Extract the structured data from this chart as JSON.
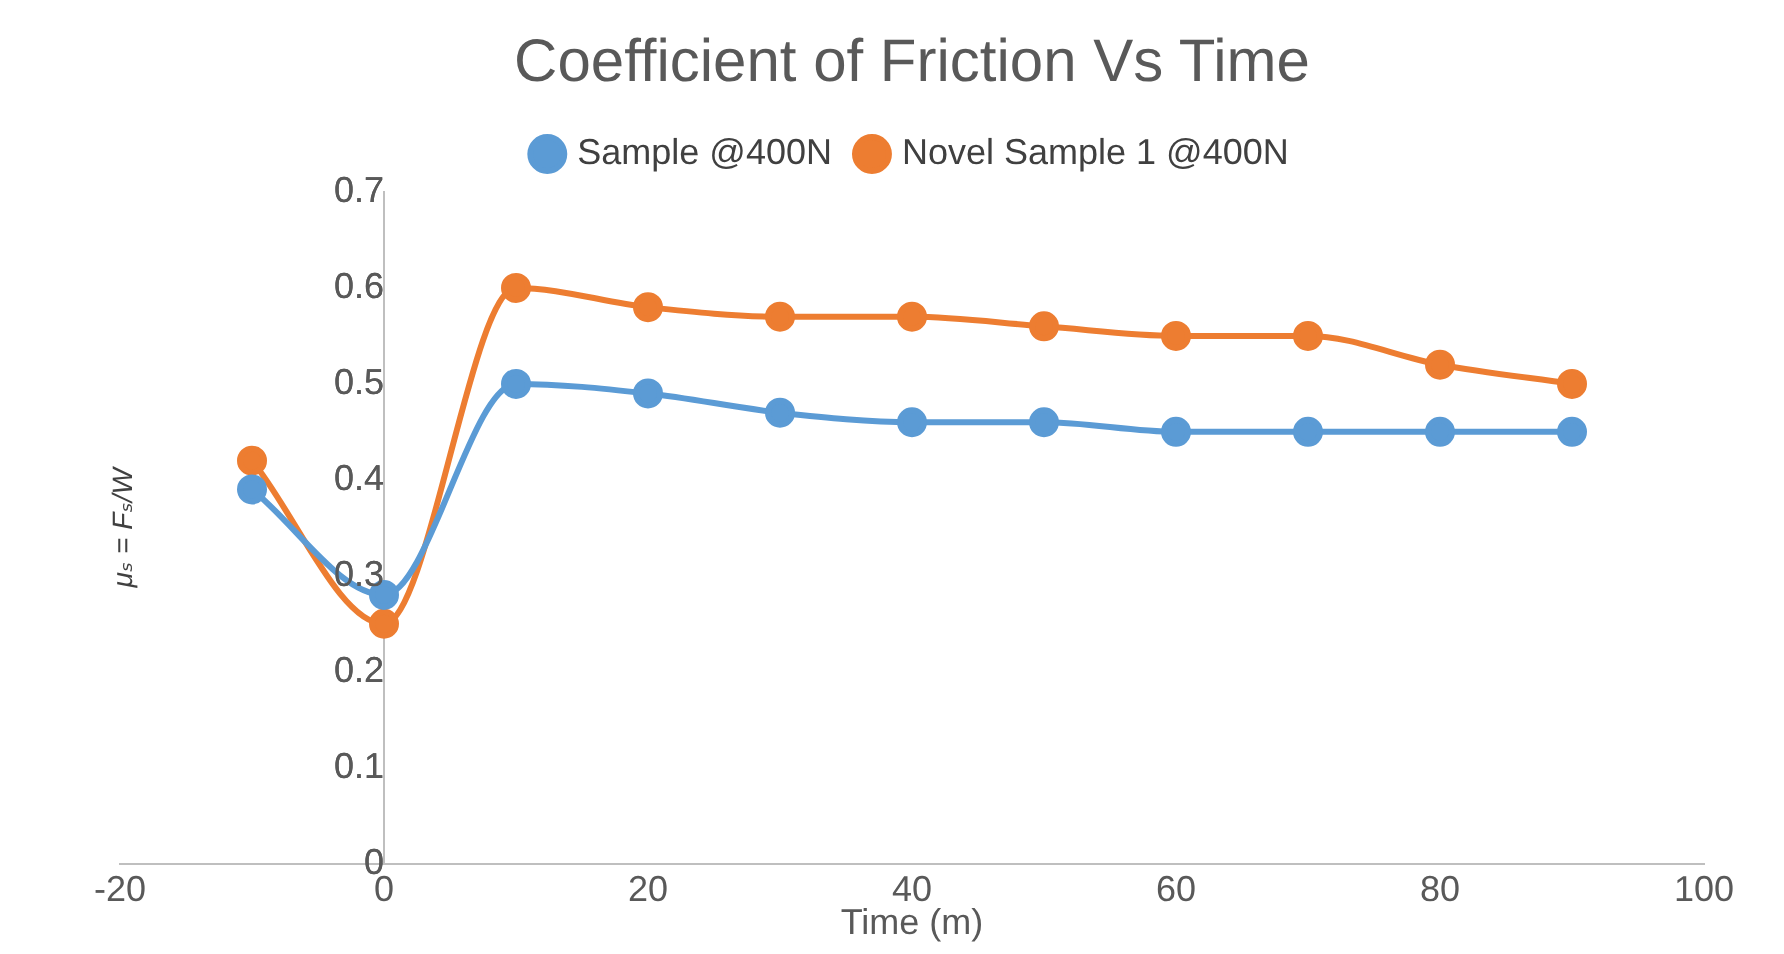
{
  "chart_data": {
    "type": "line",
    "title": "Coefficient of Friction Vs Time",
    "xlabel": "Time (m)",
    "ylabel": "μₛ = Fₛ/W",
    "x": [
      -10,
      0,
      10,
      20,
      30,
      40,
      50,
      60,
      70,
      80,
      90
    ],
    "series": [
      {
        "name": "Sample @400N",
        "color": "#5b9bd5",
        "values": [
          0.39,
          0.28,
          0.5,
          0.49,
          0.47,
          0.46,
          0.46,
          0.45,
          0.45,
          0.45,
          0.45
        ]
      },
      {
        "name": "Novel Sample 1 @400N",
        "color": "#ed7d31",
        "values": [
          0.42,
          0.25,
          0.6,
          0.58,
          0.57,
          0.57,
          0.56,
          0.55,
          0.55,
          0.52,
          0.5
        ]
      }
    ],
    "xlim": [
      -20,
      100
    ],
    "xticks": [
      -20,
      0,
      20,
      40,
      60,
      80,
      100
    ],
    "ylim": [
      0,
      0.7
    ],
    "yticks": [
      0,
      0.1,
      0.2,
      0.3,
      0.4,
      0.5,
      0.6,
      0.7
    ],
    "grid": false,
    "legend": "top",
    "marker": "circle",
    "line_style": "solid"
  }
}
